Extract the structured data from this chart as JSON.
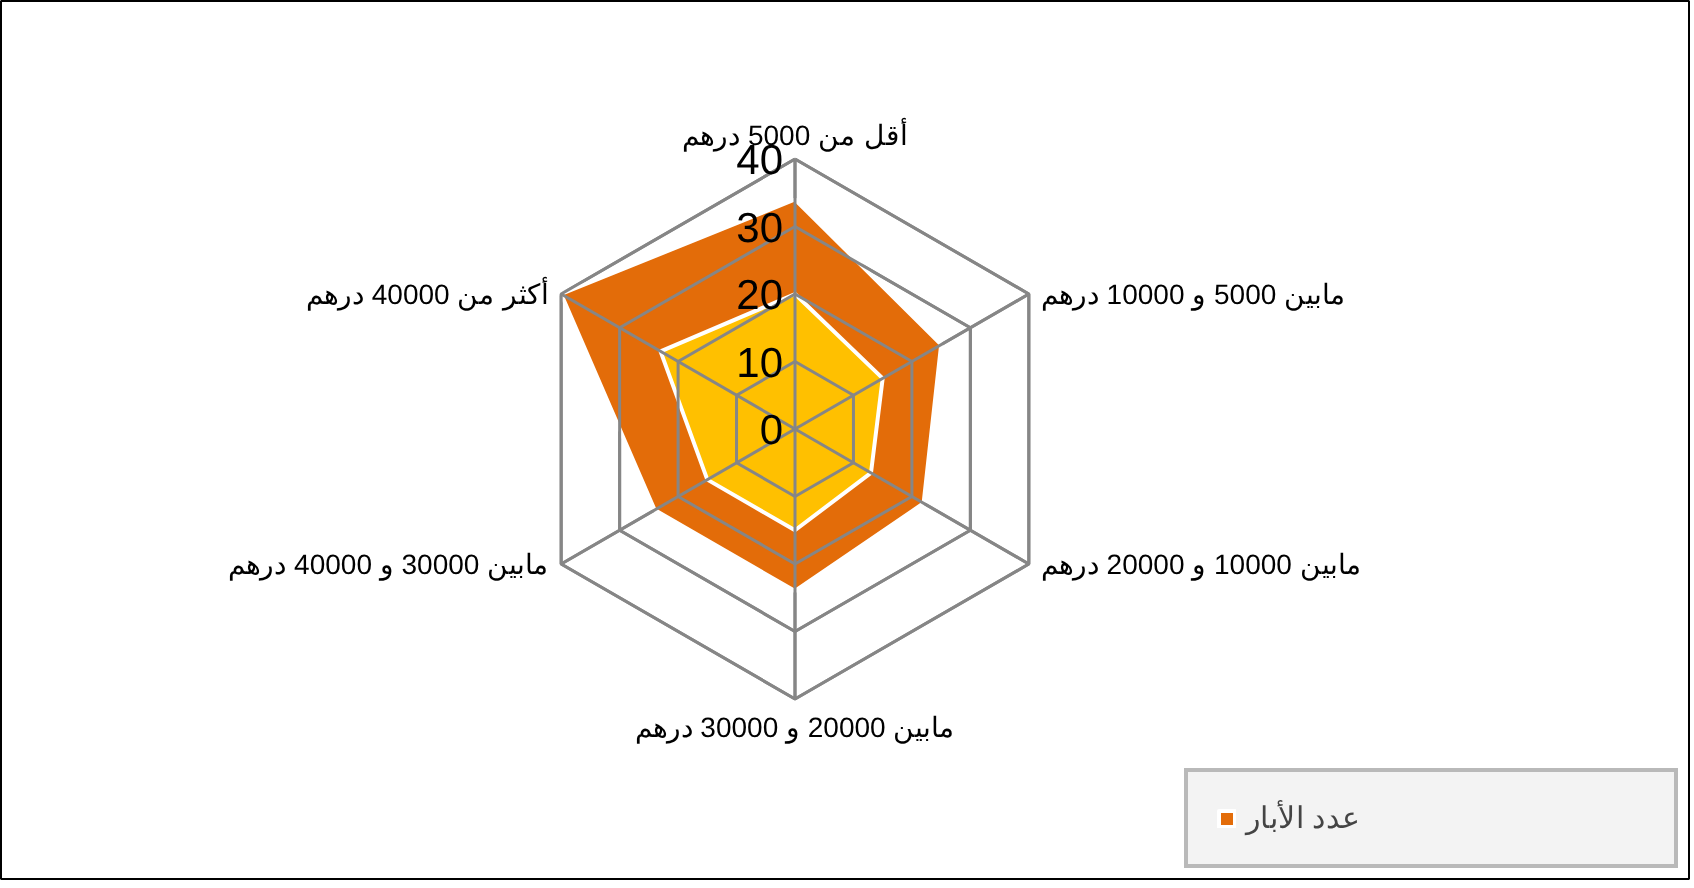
{
  "chart_data": {
    "type": "radar",
    "categories": [
      "أقل من 5000 درهم",
      "مابين 5000 و 10000 درهم",
      "مابين 10000 و 20000 درهم",
      "مابين 20000 و 30000 درهم",
      "مابين 30000 و 40000 درهم",
      "أكثر من 40000 درهم"
    ],
    "series": [
      {
        "name": "عدد الأبار",
        "color": "#e36c09",
        "values": [
          34,
          25,
          22,
          24,
          24,
          40
        ]
      },
      {
        "color": "#ffc000",
        "values": [
          20,
          15,
          13,
          15,
          15,
          23
        ]
      }
    ],
    "ylim": [
      0,
      40
    ],
    "yticks": [
      0,
      10,
      20,
      30,
      40
    ],
    "grid": true,
    "legend": "bottom right"
  }
}
